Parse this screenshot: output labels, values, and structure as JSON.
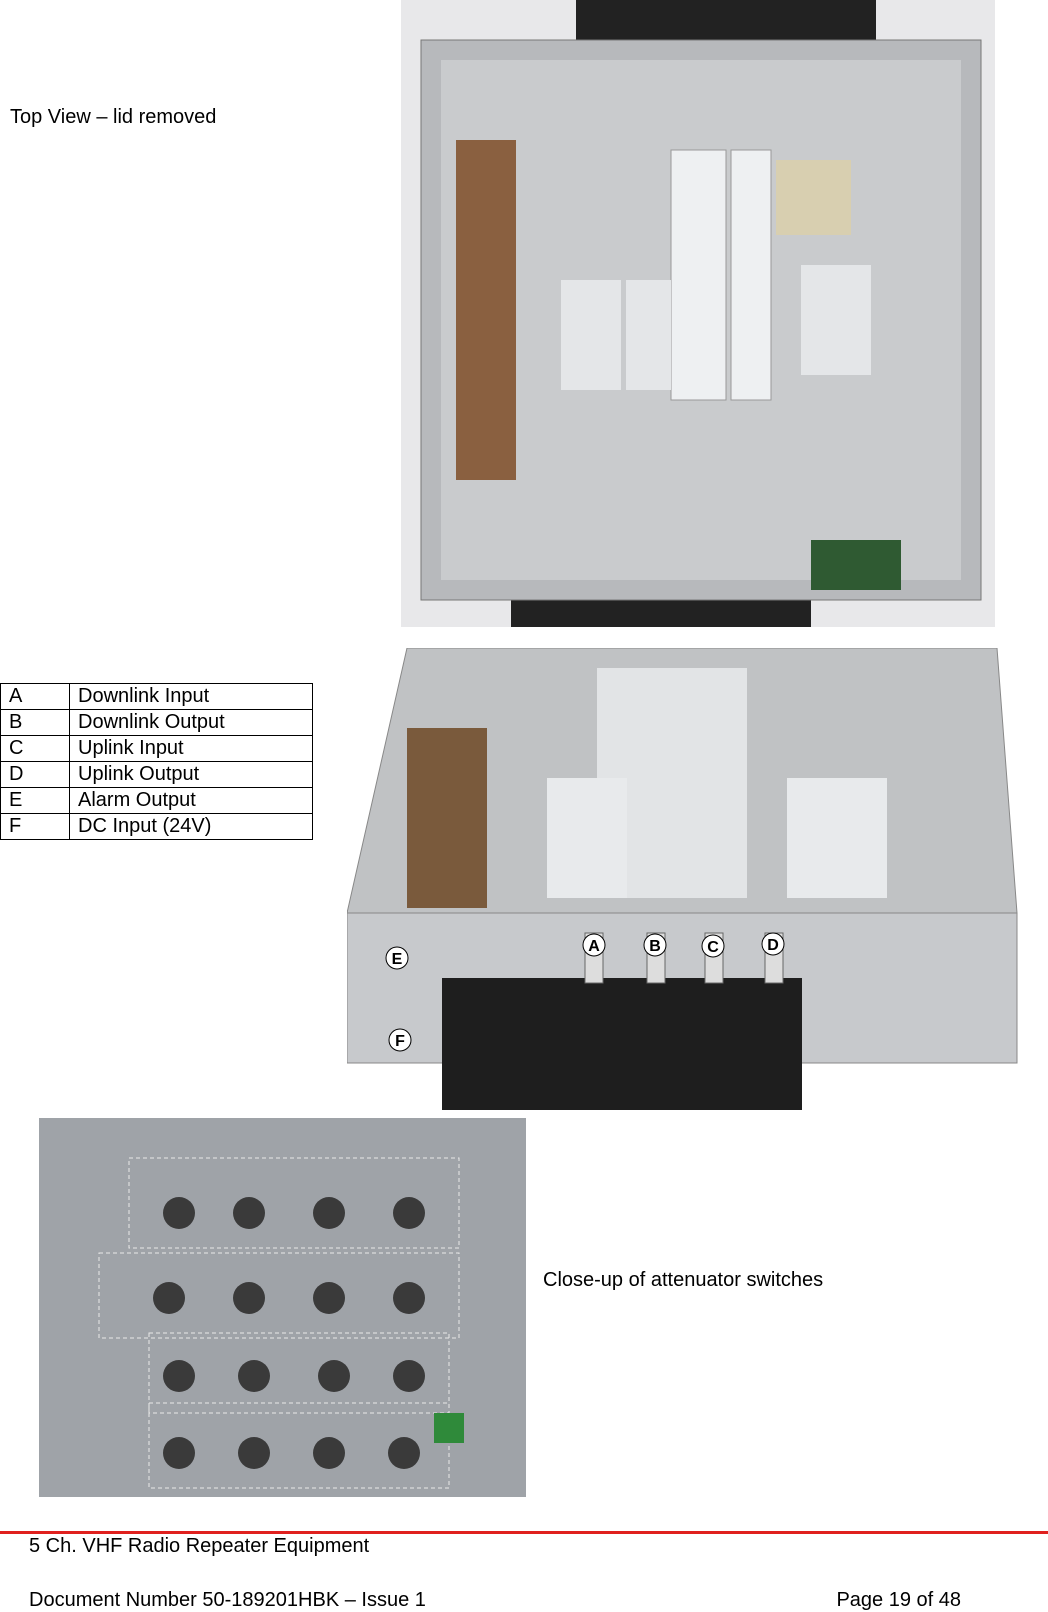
{
  "captions": {
    "top_view": "Top View – lid removed",
    "closeup": "Close-up of attenuator switches"
  },
  "table": {
    "rows": [
      [
        "A",
        "Downlink Input"
      ],
      [
        "B",
        "Downlink Output"
      ],
      [
        "C",
        "Uplink Input"
      ],
      [
        "D",
        "Uplink Output"
      ],
      [
        "E",
        "Alarm Output"
      ],
      [
        "F",
        "DC Input (24V)"
      ]
    ]
  },
  "footer": {
    "title": "5 Ch. VHF Radio Repeater Equipment",
    "document": "Document Number 50-189201HBK – Issue 1",
    "page": "Page 19 of 48"
  }
}
